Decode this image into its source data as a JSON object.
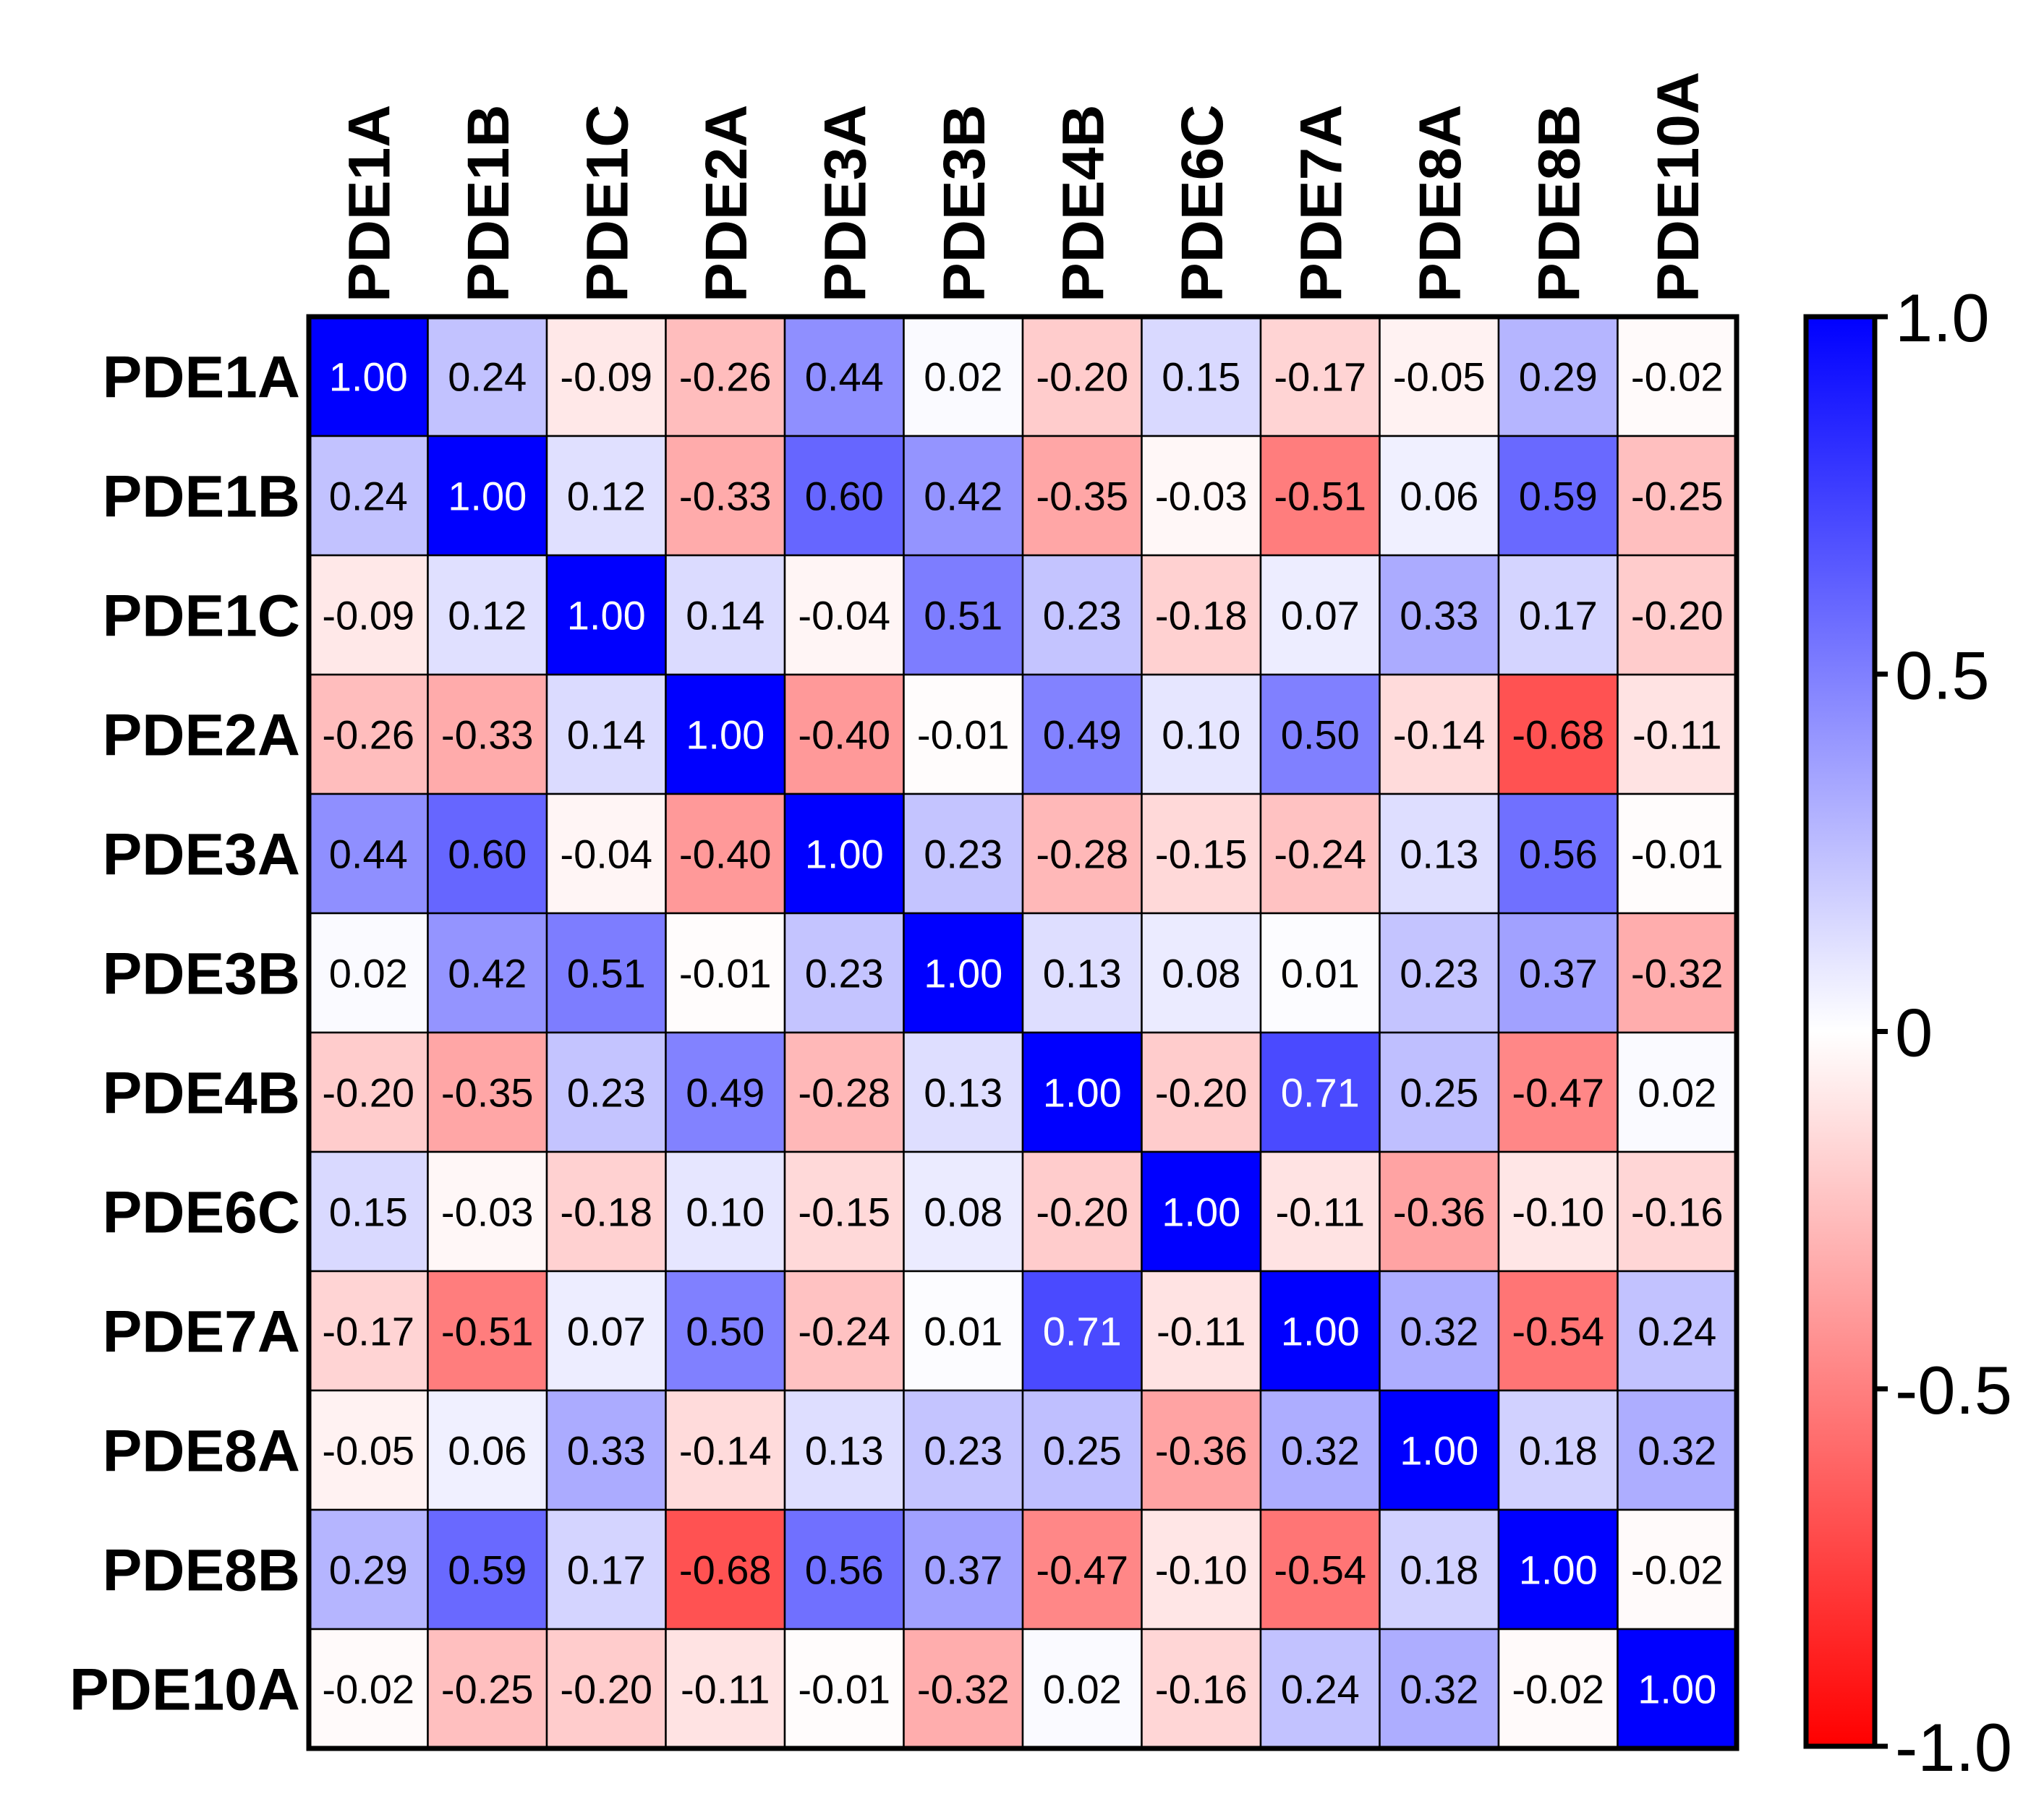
{
  "chart_data": {
    "type": "heatmap",
    "title": "",
    "row_labels": [
      "PDE1A",
      "PDE1B",
      "PDE1C",
      "PDE2A",
      "PDE3A",
      "PDE3B",
      "PDE4B",
      "PDE6C",
      "PDE7A",
      "PDE8A",
      "PDE8B",
      "PDE10A"
    ],
    "col_labels": [
      "PDE1A",
      "PDE1B",
      "PDE1C",
      "PDE2A",
      "PDE3A",
      "PDE3B",
      "PDE4B",
      "PDE6C",
      "PDE7A",
      "PDE8A",
      "PDE8B",
      "PDE10A"
    ],
    "values": [
      [
        "1.00",
        "0.24",
        "-0.09",
        "-0.26",
        "0.44",
        "0.02",
        "-0.20",
        "0.15",
        "-0.17",
        "-0.05",
        "0.29",
        "-0.02"
      ],
      [
        "0.24",
        "1.00",
        "0.12",
        "-0.33",
        "0.60",
        "0.42",
        "-0.35",
        "-0.03",
        "-0.51",
        "0.06",
        "0.59",
        "-0.25"
      ],
      [
        "-0.09",
        "0.12",
        "1.00",
        "0.14",
        "-0.04",
        "0.51",
        "0.23",
        "-0.18",
        "0.07",
        "0.33",
        "0.17",
        "-0.20"
      ],
      [
        "-0.26",
        "-0.33",
        "0.14",
        "1.00",
        "-0.40",
        "-0.01",
        "0.49",
        "0.10",
        "0.50",
        "-0.14",
        "-0.68",
        "-0.11"
      ],
      [
        "0.44",
        "0.60",
        "-0.04",
        "-0.40",
        "1.00",
        "0.23",
        "-0.28",
        "-0.15",
        "-0.24",
        "0.13",
        "0.56",
        "-0.01"
      ],
      [
        "0.02",
        "0.42",
        "0.51",
        "-0.01",
        "0.23",
        "1.00",
        "0.13",
        "0.08",
        "0.01",
        "0.23",
        "0.37",
        "-0.32"
      ],
      [
        "-0.20",
        "-0.35",
        "0.23",
        "0.49",
        "-0.28",
        "0.13",
        "1.00",
        "-0.20",
        "0.71",
        "0.25",
        "-0.47",
        "0.02"
      ],
      [
        "0.15",
        "-0.03",
        "-0.18",
        "0.10",
        "-0.15",
        "0.08",
        "-0.20",
        "1.00",
        "-0.11",
        "-0.36",
        "-0.10",
        "-0.16"
      ],
      [
        "-0.17",
        "-0.51",
        "0.07",
        "0.50",
        "-0.24",
        "0.01",
        "0.71",
        "-0.11",
        "1.00",
        "0.32",
        "-0.54",
        "0.24"
      ],
      [
        "-0.05",
        "0.06",
        "0.33",
        "-0.14",
        "0.13",
        "0.23",
        "0.25",
        "-0.36",
        "0.32",
        "1.00",
        "0.18",
        "0.32"
      ],
      [
        "0.29",
        "0.59",
        "0.17",
        "-0.68",
        "0.56",
        "0.37",
        "-0.47",
        "-0.10",
        "-0.54",
        "0.18",
        "1.00",
        "-0.02"
      ],
      [
        "-0.02",
        "-0.25",
        "-0.20",
        "-0.11",
        "-0.01",
        "-0.32",
        "0.02",
        "-0.16",
        "0.24",
        "0.32",
        "-0.02",
        "1.00"
      ]
    ],
    "colorbar": {
      "range": [
        -1.0,
        1.0
      ],
      "ticks": [
        1.0,
        0.5,
        0,
        -0.5,
        -1.0
      ],
      "tick_labels": [
        "1.0",
        "0.5",
        "0",
        "-0.5",
        "-1.0"
      ],
      "colors": {
        "max": "#0000ff",
        "mid": "#ffffff",
        "min": "#ff0000"
      }
    }
  }
}
